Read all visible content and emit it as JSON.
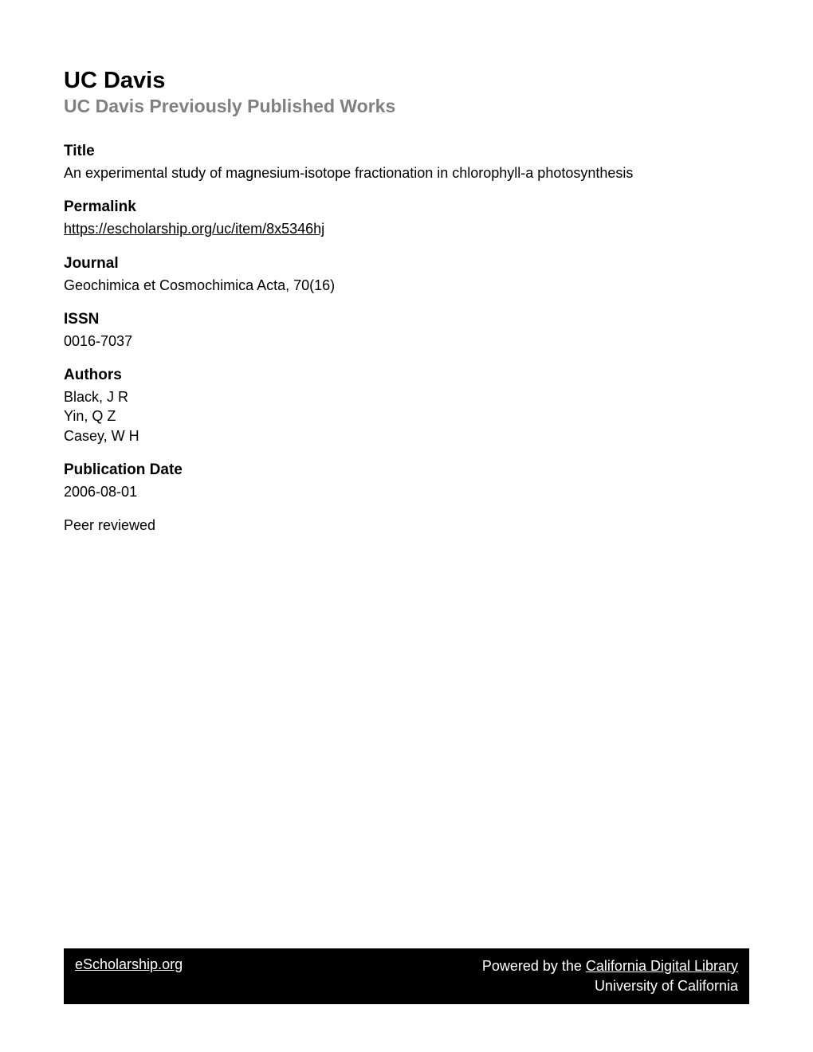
{
  "header": {
    "institution": "UC Davis",
    "subtitle": "UC Davis Previously Published Works"
  },
  "sections": {
    "title": {
      "heading": "Title",
      "content": "An experimental study of magnesium-isotope fractionation in chlorophyll-a photosynthesis"
    },
    "permalink": {
      "heading": "Permalink",
      "url": "https://escholarship.org/uc/item/8x5346hj"
    },
    "journal": {
      "heading": "Journal",
      "content": "Geochimica et Cosmochimica Acta, 70(16)"
    },
    "issn": {
      "heading": "ISSN",
      "content": "0016-7037"
    },
    "authors": {
      "heading": "Authors",
      "list": [
        "Black, J R",
        "Yin, Q Z",
        "Casey, W H"
      ]
    },
    "publicationDate": {
      "heading": "Publication Date",
      "content": "2006-08-01"
    },
    "peerReviewed": "Peer reviewed"
  },
  "footer": {
    "leftLink": "eScholarship.org",
    "rightPrefix": "Powered by the ",
    "rightLink": "California Digital Library",
    "rightSubtext": "University of California"
  },
  "colors": {
    "background": "#ffffff",
    "primaryText": "#000000",
    "subtitleText": "#808080",
    "footerBackground": "#000000",
    "footerText": "#ffffff"
  },
  "typography": {
    "institutionTitleSize": 29,
    "subtitleSize": 23,
    "headingSize": 19,
    "bodySize": 18
  }
}
